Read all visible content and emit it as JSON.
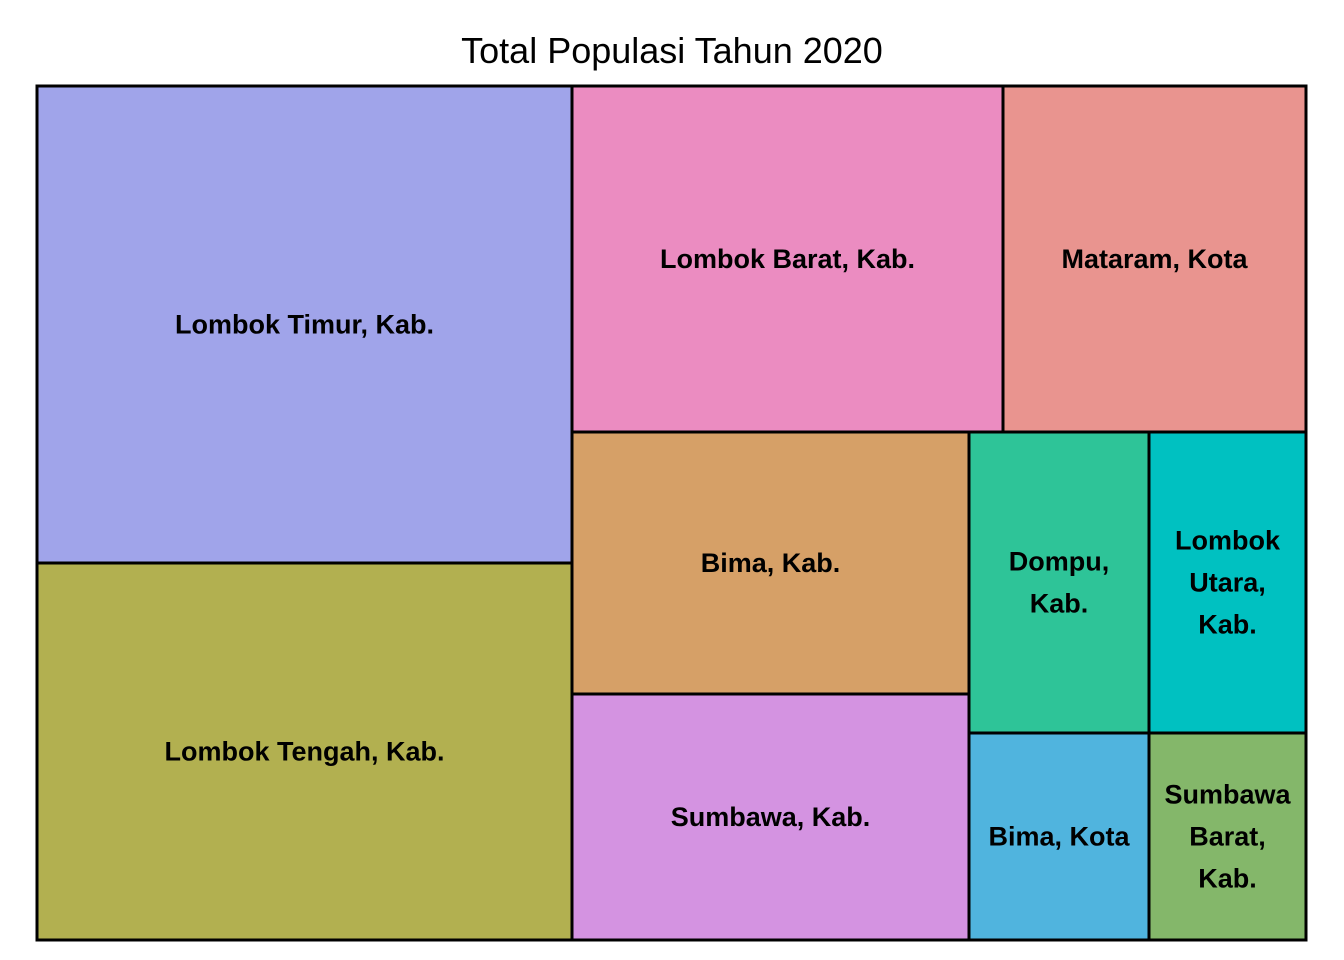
{
  "chart_data": {
    "type": "treemap",
    "title": "Total Populasi Tahun 2020",
    "tiles": [
      {
        "name": "Lombok Timur, Kab.",
        "label_lines": [
          "Lombok Timur, Kab."
        ],
        "color": "#A0A4EA"
      },
      {
        "name": "Lombok Tengah, Kab.",
        "label_lines": [
          "Lombok Tengah, Kab."
        ],
        "color": "#B2B050"
      },
      {
        "name": "Lombok Barat, Kab.",
        "label_lines": [
          "Lombok Barat, Kab."
        ],
        "color": "#EB8CC1"
      },
      {
        "name": "Mataram, Kota",
        "label_lines": [
          "Mataram, Kota"
        ],
        "color": "#E9948F"
      },
      {
        "name": "Bima, Kab.",
        "label_lines": [
          "Bima, Kab."
        ],
        "color": "#D6A067"
      },
      {
        "name": "Sumbawa, Kab.",
        "label_lines": [
          "Sumbawa, Kab."
        ],
        "color": "#D493E1"
      },
      {
        "name": "Dompu, Kab.",
        "label_lines": [
          "Dompu,",
          "Kab."
        ],
        "color": "#2EC498"
      },
      {
        "name": "Lombok Utara, Kab.",
        "label_lines": [
          "Lombok",
          "Utara,",
          "Kab."
        ],
        "color": "#00C1C1"
      },
      {
        "name": "Bima, Kota",
        "label_lines": [
          "Bima, Kota"
        ],
        "color": "#50B4DE"
      },
      {
        "name": "Sumbawa Barat, Kab.",
        "label_lines": [
          "Sumbawa",
          "Barat,",
          "Kab."
        ],
        "color": "#84B76A"
      }
    ]
  }
}
